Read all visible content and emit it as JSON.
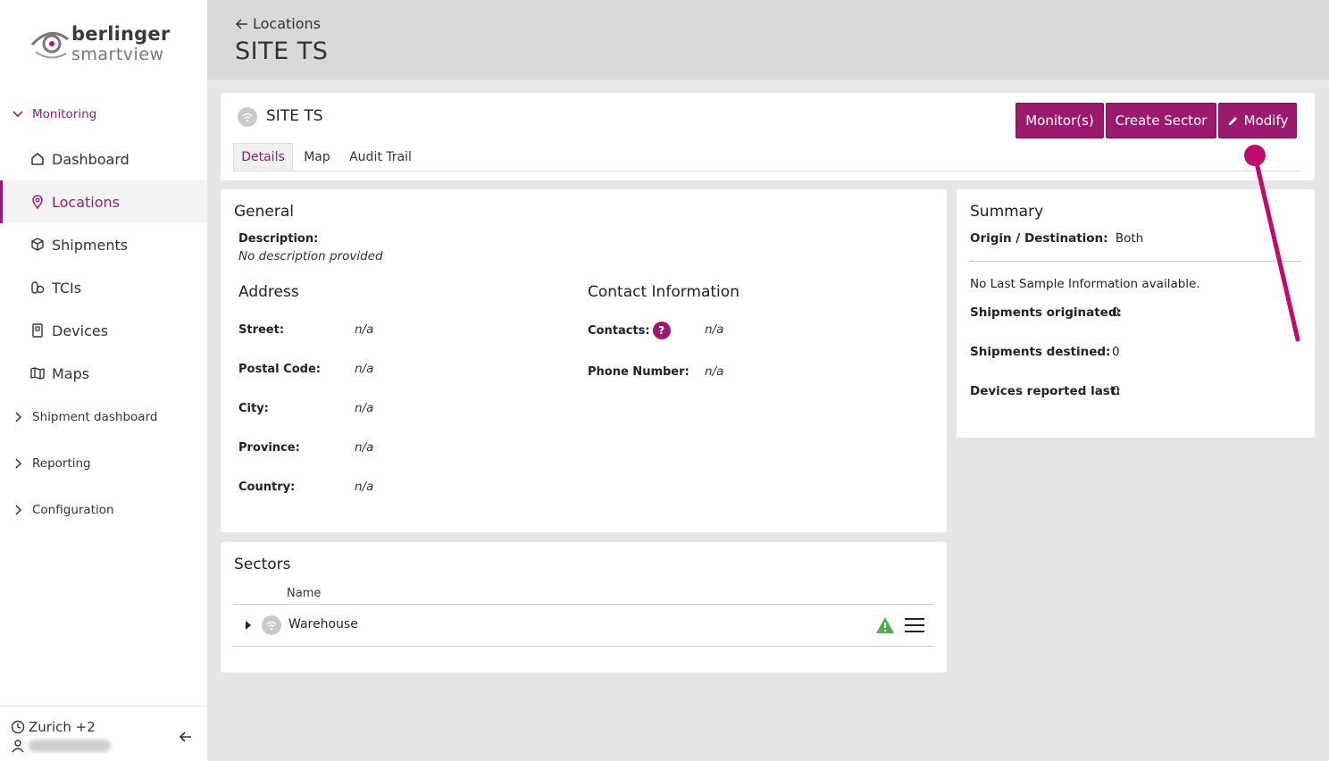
{
  "brand": {
    "line1": "berlinger",
    "line2": "smartview"
  },
  "sidebar": {
    "groups": [
      {
        "label": "Monitoring"
      },
      {
        "label": "Shipment dashboard"
      },
      {
        "label": "Reporting"
      },
      {
        "label": "Configuration"
      }
    ],
    "items": [
      {
        "label": "Dashboard",
        "icon": "home-icon"
      },
      {
        "label": "Locations",
        "icon": "location-pin-icon"
      },
      {
        "label": "Shipments",
        "icon": "package-icon"
      },
      {
        "label": "TCIs",
        "icon": "tci-icon"
      },
      {
        "label": "Devices",
        "icon": "device-icon"
      },
      {
        "label": "Maps",
        "icon": "map-icon"
      }
    ],
    "footer": {
      "timezone": "Zurich +2"
    }
  },
  "header": {
    "back_label": "Locations",
    "title": "SITE TS"
  },
  "site": {
    "name": "SITE TS",
    "buttons": {
      "monitors": "Monitor(s)",
      "create_sector": "Create Sector",
      "modify": "Modify"
    },
    "tabs": [
      "Details",
      "Map",
      "Audit Trail"
    ]
  },
  "general": {
    "title": "General",
    "description_label": "Description:",
    "description_value": "No description provided",
    "address_title": "Address",
    "address": [
      {
        "label": "Street:",
        "value": "n/a"
      },
      {
        "label": "Postal Code:",
        "value": "n/a"
      },
      {
        "label": "City:",
        "value": "n/a"
      },
      {
        "label": "Province:",
        "value": "n/a"
      },
      {
        "label": "Country:",
        "value": "n/a"
      }
    ],
    "contact_title": "Contact Information",
    "contacts_label": "Contacts:",
    "contacts_value": "n/a",
    "phone_label": "Phone Number:",
    "phone_value": "n/a"
  },
  "summary": {
    "title": "Summary",
    "origin_label": "Origin / Destination:",
    "origin_value": "Both",
    "no_sample": "No Last Sample Information available.",
    "stats": [
      {
        "label": "Shipments originated:",
        "value": "0"
      },
      {
        "label": "Shipments destined:",
        "value": "0"
      },
      {
        "label": "Devices reported last:",
        "value": "0"
      }
    ]
  },
  "sectors": {
    "title": "Sectors",
    "column_name": "Name",
    "rows": [
      {
        "name": "Warehouse"
      }
    ]
  },
  "colors": {
    "accent": "#9b1a6e",
    "warning": "#4caf50",
    "annotation": "#c2096f"
  }
}
